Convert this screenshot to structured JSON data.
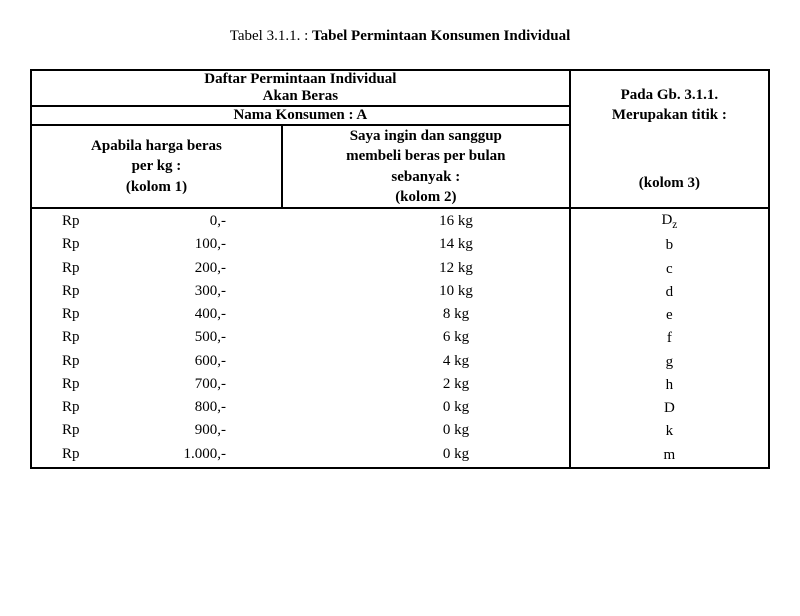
{
  "caption_prefix": "Tabel 3.1.1. : ",
  "caption_bold": "Tabel Permintaan Konsumen Individual",
  "header_left_line1": "Daftar Permintaan Individual",
  "header_left_line2": "Akan Beras",
  "header_consumer": "Nama Konsumen : A",
  "header_right_line1": "Pada Gb. 3.1.1.",
  "header_right_line2": "Merupakan titik :",
  "colhdr1_line1": "Apabila harga beras",
  "colhdr1_line2": "per kg :",
  "colhdr1_line3": "(kolom 1)",
  "colhdr2_line1": "Saya ingin dan sanggup",
  "colhdr2_line2": "membeli beras per bulan",
  "colhdr2_line3": "sebanyak :",
  "colhdr2_line4": "(kolom 2)",
  "colhdr3": "(kolom 3)",
  "currency": "Rp",
  "rows": [
    {
      "price": "0,-",
      "qty": "16 kg",
      "pt": "Dz",
      "sub": true
    },
    {
      "price": "100,-",
      "qty": "14 kg",
      "pt": "b"
    },
    {
      "price": "200,-",
      "qty": "12 kg",
      "pt": "c"
    },
    {
      "price": "300,-",
      "qty": "10 kg",
      "pt": "d"
    },
    {
      "price": "400,-",
      "qty": "8 kg",
      "pt": "e"
    },
    {
      "price": "500,-",
      "qty": "6 kg",
      "pt": "f"
    },
    {
      "price": "600,-",
      "qty": "4 kg",
      "pt": "g"
    },
    {
      "price": "700,-",
      "qty": "2 kg",
      "pt": "h"
    },
    {
      "price": "800,-",
      "qty": "0 kg",
      "pt": "D"
    },
    {
      "price": "900,-",
      "qty": "0 kg",
      "pt": "k"
    },
    {
      "price": "1.000,-",
      "qty": "0 kg",
      "pt": "m"
    }
  ]
}
